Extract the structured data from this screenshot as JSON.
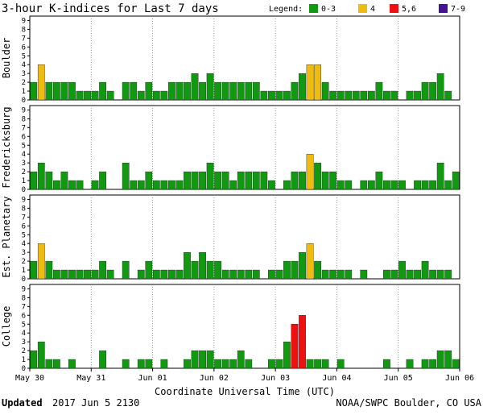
{
  "title": "3-hour K-indices for Last 7 days",
  "legend": {
    "label": "Legend:",
    "items": [
      {
        "label": "0-3",
        "color": "#119911"
      },
      {
        "label": "4",
        "color": "#eebb11"
      },
      {
        "label": "5,6",
        "color": "#ee1111"
      },
      {
        "label": "7-9",
        "color": "#441199"
      }
    ]
  },
  "footer": {
    "updated_label": "Updated",
    "updated_value": "2017 Jun  5 2130",
    "source": "NOAA/SWPC Boulder, CO USA"
  },
  "chart_data": {
    "type": "bar",
    "title": "3-hour K-indices for Last 7 days",
    "xlabel": "Coordinate Universal Time (UTC)",
    "x_ticks": [
      "May 30",
      "May 31",
      "Jun 01",
      "Jun 02",
      "Jun 03",
      "Jun 04",
      "Jun 05",
      "Jun 06"
    ],
    "y_ticks": [
      0,
      1,
      2,
      3,
      4,
      5,
      6,
      7,
      8,
      9
    ],
    "ylim": [
      0,
      9
    ],
    "bars_per_day": 8,
    "color_thresholds": {
      "0-3": "#119911",
      "4": "#eebb11",
      "5,6": "#ee1111",
      "7-9": "#441199"
    },
    "series": [
      {
        "name": "Boulder",
        "values": [
          2,
          4,
          2,
          2,
          2,
          2,
          1,
          1,
          1,
          2,
          1,
          0,
          2,
          2,
          1,
          2,
          1,
          1,
          2,
          2,
          2,
          3,
          2,
          3,
          2,
          2,
          2,
          2,
          2,
          2,
          1,
          1,
          1,
          1,
          2,
          3,
          4,
          4,
          2,
          1,
          1,
          1,
          1,
          1,
          1,
          2,
          1,
          1,
          0,
          1,
          1,
          2,
          2,
          3,
          1,
          0
        ]
      },
      {
        "name": "Fredericksburg",
        "values": [
          2,
          3,
          2,
          1,
          2,
          1,
          1,
          0,
          1,
          2,
          0,
          0,
          3,
          1,
          1,
          2,
          1,
          1,
          1,
          1,
          2,
          2,
          2,
          3,
          2,
          2,
          1,
          2,
          2,
          2,
          2,
          1,
          0,
          1,
          2,
          2,
          4,
          3,
          2,
          2,
          1,
          1,
          0,
          1,
          1,
          2,
          1,
          1,
          1,
          0,
          1,
          1,
          1,
          3,
          1,
          2,
          0
        ]
      },
      {
        "name": "Est. Planetary",
        "values": [
          2,
          4,
          2,
          1,
          1,
          1,
          1,
          1,
          1,
          2,
          1,
          0,
          2,
          0,
          1,
          2,
          1,
          1,
          1,
          1,
          3,
          2,
          3,
          2,
          2,
          1,
          1,
          1,
          1,
          1,
          0,
          1,
          1,
          2,
          2,
          3,
          4,
          2,
          1,
          1,
          1,
          1,
          0,
          1,
          0,
          0,
          1,
          1,
          2,
          1,
          1,
          2,
          1,
          1,
          1
        ]
      },
      {
        "name": "College",
        "values": [
          2,
          3,
          1,
          1,
          0,
          1,
          0,
          0,
          0,
          2,
          0,
          0,
          1,
          0,
          1,
          1,
          0,
          1,
          0,
          0,
          1,
          2,
          2,
          2,
          1,
          1,
          1,
          2,
          1,
          0,
          0,
          1,
          1,
          3,
          5,
          6,
          1,
          1,
          1,
          0,
          1,
          0,
          0,
          0,
          0,
          0,
          1,
          0,
          0,
          1,
          0,
          1,
          1,
          2,
          2,
          1,
          0
        ]
      }
    ]
  }
}
